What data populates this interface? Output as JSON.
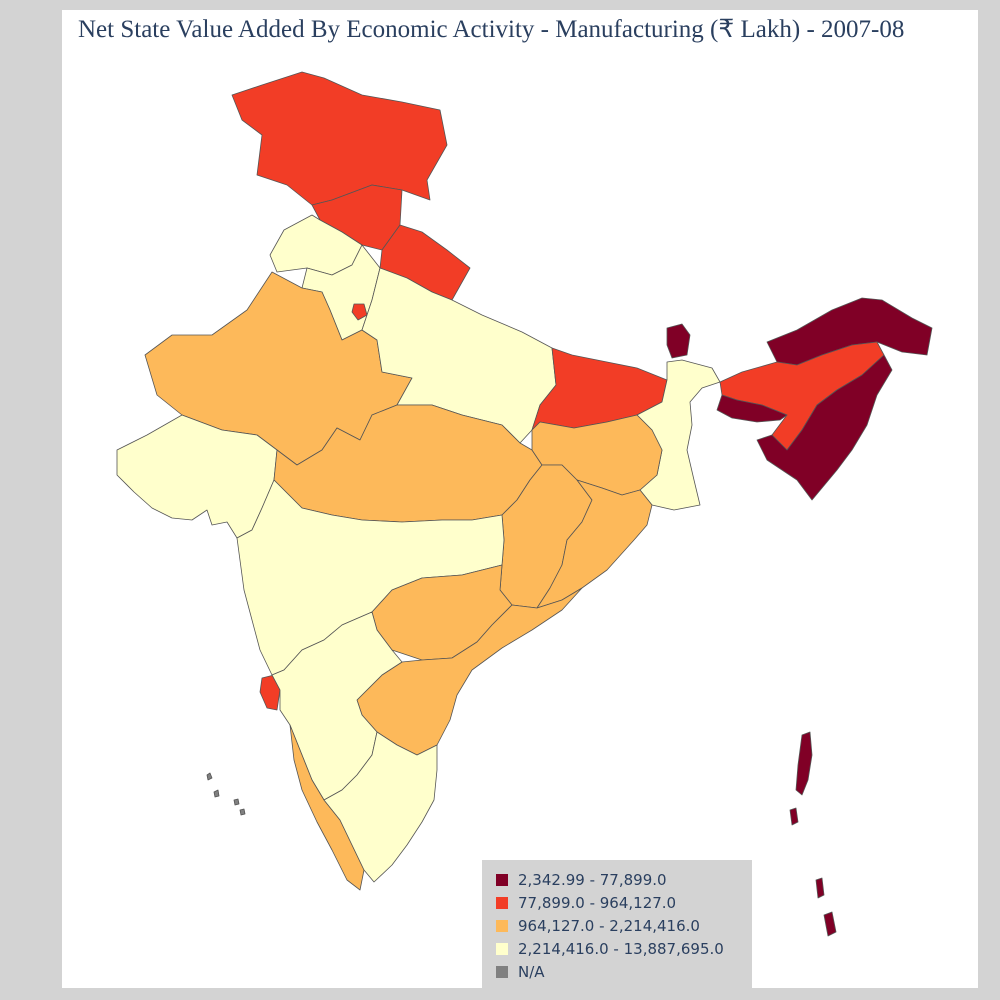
{
  "title": "Net State Value Added By Economic Activity - Manufacturing (₹ Lakh) - 2007-08",
  "colors": {
    "c1": "#800026",
    "c2": "#f23d26",
    "c3": "#fdb95a",
    "c4": "#ffffcc",
    "na": "#808080"
  },
  "legend": {
    "items": [
      {
        "label": "2,342.99 - 77,899.0",
        "color_key": "c1"
      },
      {
        "label": "77,899.0 - 964,127.0",
        "color_key": "c2"
      },
      {
        "label": "964,127.0 - 2,214,416.0",
        "color_key": "c3"
      },
      {
        "label": "2,214,416.0 - 13,887,695.0",
        "color_key": "c4"
      },
      {
        "label": "N/A",
        "color_key": "na"
      }
    ]
  },
  "regions": [
    {
      "name": "Jammu & Kashmir",
      "class": "c2"
    },
    {
      "name": "Himachal Pradesh",
      "class": "c2"
    },
    {
      "name": "Uttarakhand",
      "class": "c2"
    },
    {
      "name": "Punjab",
      "class": "c4"
    },
    {
      "name": "Haryana",
      "class": "c4"
    },
    {
      "name": "Delhi",
      "class": "c2"
    },
    {
      "name": "Rajasthan",
      "class": "c3"
    },
    {
      "name": "Uttar Pradesh",
      "class": "c4"
    },
    {
      "name": "Bihar",
      "class": "c2"
    },
    {
      "name": "Sikkim",
      "class": "c1"
    },
    {
      "name": "West Bengal",
      "class": "c4"
    },
    {
      "name": "Arunachal Pradesh",
      "class": "c1"
    },
    {
      "name": "Assam",
      "class": "c2"
    },
    {
      "name": "Meghalaya",
      "class": "c1"
    },
    {
      "name": "Nagaland / Manipur / Mizoram / Tripura",
      "class": "c1"
    },
    {
      "name": "Gujarat",
      "class": "c4"
    },
    {
      "name": "Madhya Pradesh",
      "class": "c3"
    },
    {
      "name": "Jharkhand",
      "class": "c3"
    },
    {
      "name": "Chhattisgarh",
      "class": "c3"
    },
    {
      "name": "Odisha",
      "class": "c3"
    },
    {
      "name": "Maharashtra",
      "class": "c4"
    },
    {
      "name": "Goa",
      "class": "c2"
    },
    {
      "name": "Telangana",
      "class": "c3"
    },
    {
      "name": "Andhra Pradesh",
      "class": "c3"
    },
    {
      "name": "Karnataka",
      "class": "c4"
    },
    {
      "name": "Kerala",
      "class": "c3"
    },
    {
      "name": "Tamil Nadu",
      "class": "c4"
    },
    {
      "name": "Andaman & Nicobar Islands",
      "class": "c1"
    },
    {
      "name": "Lakshadweep",
      "class": "na"
    }
  ]
}
